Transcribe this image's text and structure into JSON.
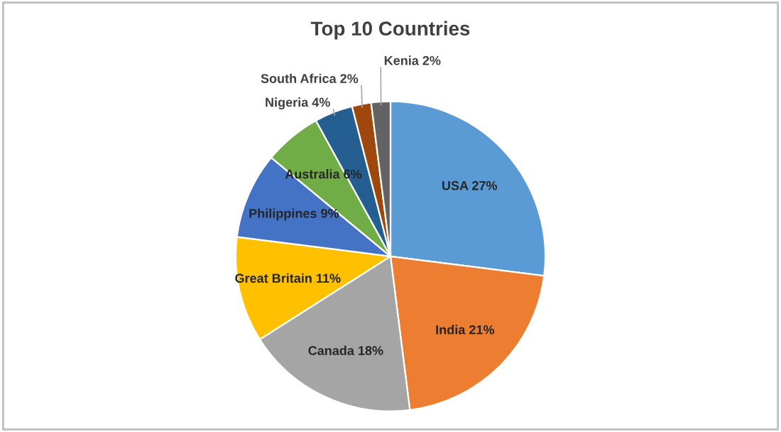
{
  "chart_data": {
    "type": "pie",
    "title": "Top 10 Countries",
    "categories": [
      "USA",
      "India",
      "Canada",
      "Great Britain",
      "Philippines",
      "Australia",
      "Nigeria",
      "South Africa",
      "Kenia"
    ],
    "values": [
      27,
      21,
      18,
      11,
      9,
      6,
      4,
      2,
      2
    ],
    "value_labels": [
      "27%",
      "21%",
      "18%",
      "11%",
      "9%",
      "6%",
      "4%",
      "2%",
      "2%"
    ],
    "colors": [
      "#5b9bd5",
      "#ed7d31",
      "#a5a5a5",
      "#ffc000",
      "#4472c4",
      "#70ad47",
      "#255e91",
      "#9e480e",
      "#636363"
    ],
    "legend": false
  }
}
